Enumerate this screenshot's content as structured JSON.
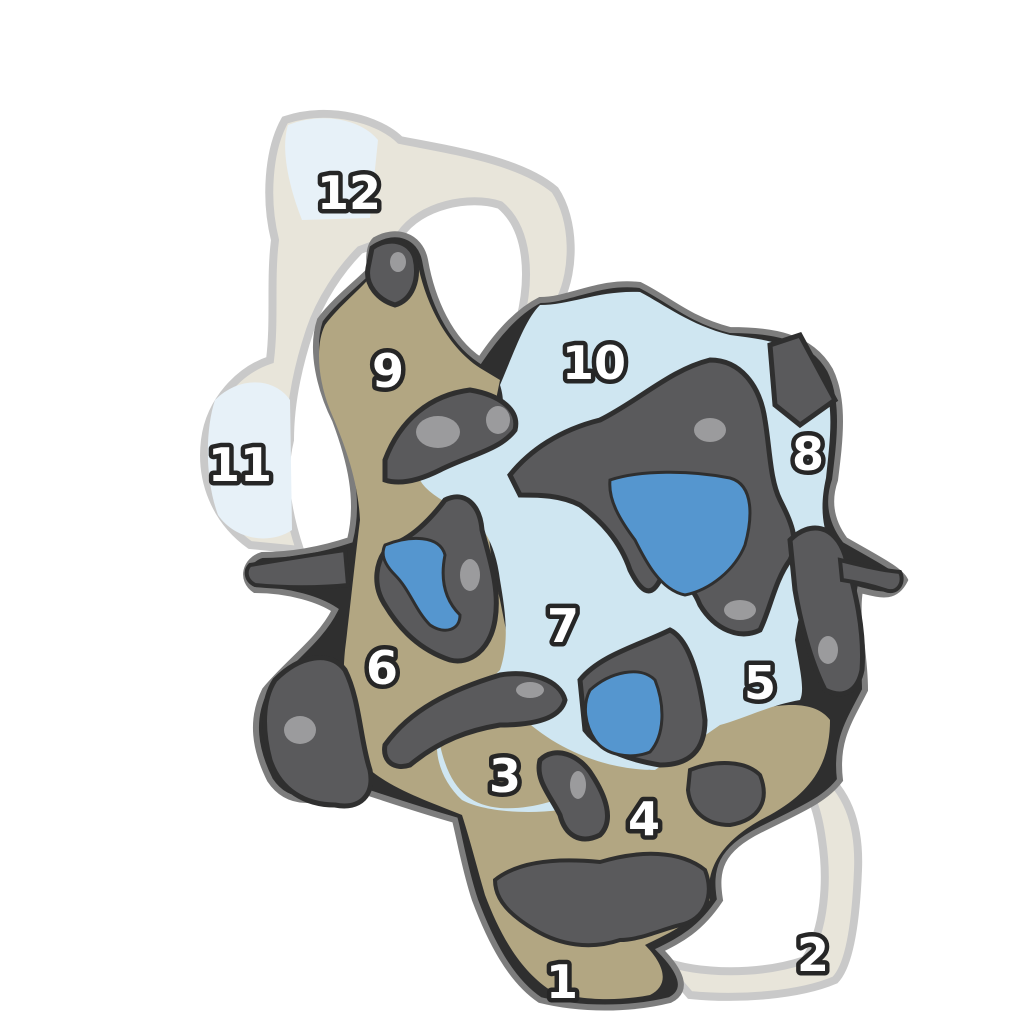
{
  "map": {
    "colors": {
      "ice": "#cfe6f1",
      "ice_pale": "#e7f1f8",
      "sand": "#b2a682",
      "sand_pale": "#e8e5da",
      "rock": "#5a5a5c",
      "rock_light": "#9b9b9d",
      "water": "#5596cf",
      "outline": "#2f2f2f"
    },
    "zones": [
      {
        "id": "1",
        "label": "1"
      },
      {
        "id": "2",
        "label": "2"
      },
      {
        "id": "3",
        "label": "3"
      },
      {
        "id": "4",
        "label": "4"
      },
      {
        "id": "5",
        "label": "5"
      },
      {
        "id": "6",
        "label": "6"
      },
      {
        "id": "7",
        "label": "7"
      },
      {
        "id": "8",
        "label": "8"
      },
      {
        "id": "9",
        "label": "9"
      },
      {
        "id": "10",
        "label": "10"
      },
      {
        "id": "11",
        "label": "11"
      },
      {
        "id": "12",
        "label": "12"
      }
    ]
  }
}
